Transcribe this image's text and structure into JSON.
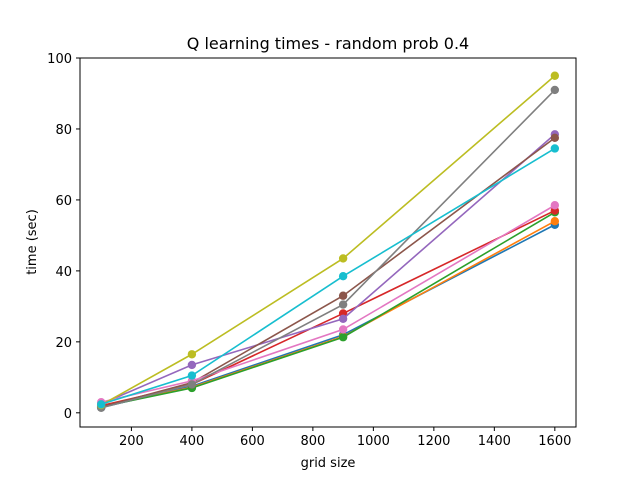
{
  "chart_data": {
    "type": "line",
    "title": "Q learning times - random prob 0.4",
    "xlabel": "grid size",
    "ylabel": "time (sec)",
    "xlim": [
      30,
      1670
    ],
    "ylim": [
      -4,
      100
    ],
    "xticks": [
      200,
      400,
      600,
      800,
      1000,
      1200,
      1400,
      1600
    ],
    "yticks": [
      0,
      20,
      40,
      60,
      80,
      100
    ],
    "grid": false,
    "x": [
      100,
      400,
      900,
      1600
    ],
    "series": [
      {
        "color": "#1f77b4",
        "values": [
          1.5,
          7.5,
          22.0,
          53.0
        ]
      },
      {
        "color": "#ff7f0e",
        "values": [
          1.8,
          7.2,
          21.5,
          54.0
        ]
      },
      {
        "color": "#2ca02c",
        "values": [
          1.7,
          7.0,
          21.3,
          56.5
        ]
      },
      {
        "color": "#d62728",
        "values": [
          2.0,
          8.0,
          28.0,
          57.0
        ]
      },
      {
        "color": "#9467bd",
        "values": [
          2.5,
          13.5,
          26.5,
          78.5
        ]
      },
      {
        "color": "#8c564b",
        "values": [
          1.6,
          8.5,
          33.0,
          77.5
        ]
      },
      {
        "color": "#e377c2",
        "values": [
          3.0,
          9.0,
          23.5,
          58.5
        ]
      },
      {
        "color": "#7f7f7f",
        "values": [
          1.4,
          8.0,
          30.5,
          91.0
        ]
      },
      {
        "color": "#bcbd22",
        "values": [
          2.2,
          16.5,
          43.5,
          95.0
        ]
      },
      {
        "color": "#17becf",
        "values": [
          2.4,
          10.5,
          38.5,
          74.5
        ]
      }
    ]
  }
}
